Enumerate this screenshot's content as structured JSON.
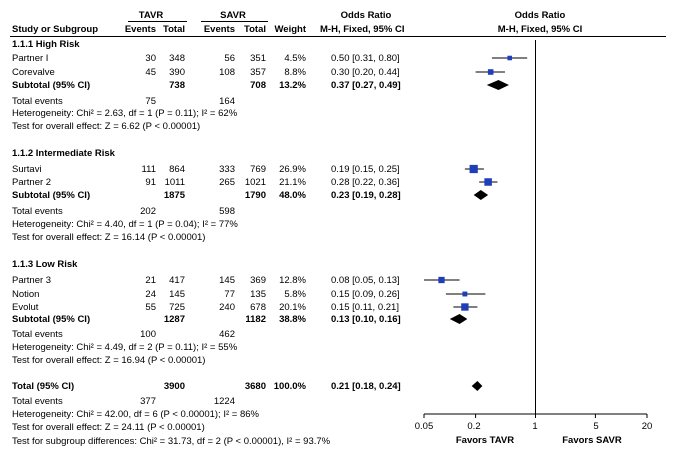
{
  "header": {
    "tavr": "TAVR",
    "savr": "SAVR",
    "or_col": "Odds Ratio",
    "or_col_right": "Odds Ratio",
    "study": "Study or Subgroup",
    "events1": "Events",
    "total1": "Total",
    "events2": "Events",
    "total2": "Total",
    "weight": "Weight",
    "method": "M-H, Fixed, 95% CI",
    "method_right": "M-H, Fixed, 95% CI"
  },
  "groups": [
    {
      "title": "1.1.1 High Risk",
      "studies": [
        {
          "name": "Partner I",
          "e1": "30",
          "n1": "348",
          "e2": "56",
          "n2": "351",
          "w": "4.5%",
          "ci": "0.50 [0.31, 0.80]"
        },
        {
          "name": "Corevalve",
          "e1": "45",
          "n1": "390",
          "e2": "108",
          "n2": "357",
          "w": "8.8%",
          "ci": "0.30 [0.20, 0.44]"
        }
      ],
      "subtotal": {
        "label": "Subtotal (95% CI)",
        "n1": "738",
        "n2": "708",
        "w": "13.2%",
        "ci": "0.37 [0.27, 0.49]"
      },
      "events": {
        "label": "Total events",
        "e1": "75",
        "e2": "164"
      },
      "het": "Heterogeneity: Chi² = 2.63, df = 1 (P = 0.11); I² = 62%",
      "test": "Test for overall effect: Z = 6.62 (P < 0.00001)"
    },
    {
      "title": "1.1.2 Intermediate Risk",
      "studies": [
        {
          "name": "Surtavi",
          "e1": "111",
          "n1": "864",
          "e2": "333",
          "n2": "769",
          "w": "26.9%",
          "ci": "0.19 [0.15, 0.25]"
        },
        {
          "name": "Partner 2",
          "e1": "91",
          "n1": "1011",
          "e2": "265",
          "n2": "1021",
          "w": "21.1%",
          "ci": "0.28 [0.22, 0.36]"
        }
      ],
      "subtotal": {
        "label": "Subtotal (95% CI)",
        "n1": "1875",
        "n2": "1790",
        "w": "48.0%",
        "ci": "0.23 [0.19, 0.28]"
      },
      "events": {
        "label": "Total events",
        "e1": "202",
        "e2": "598"
      },
      "het": "Heterogeneity: Chi² = 4.40, df = 1 (P = 0.04); I² = 77%",
      "test": "Test for overall effect: Z = 16.14 (P < 0.00001)"
    },
    {
      "title": "1.1.3 Low Risk",
      "studies": [
        {
          "name": "Partner 3",
          "e1": "21",
          "n1": "417",
          "e2": "145",
          "n2": "369",
          "w": "12.8%",
          "ci": "0.08 [0.05, 0.13]"
        },
        {
          "name": "Notion",
          "e1": "24",
          "n1": "145",
          "e2": "77",
          "n2": "135",
          "w": "5.8%",
          "ci": "0.15 [0.09, 0.26]"
        },
        {
          "name": "Evolut",
          "e1": "55",
          "n1": "725",
          "e2": "240",
          "n2": "678",
          "w": "20.1%",
          "ci": "0.15 [0.11, 0.21]"
        }
      ],
      "subtotal": {
        "label": "Subtotal (95% CI)",
        "n1": "1287",
        "n2": "1182",
        "w": "38.8%",
        "ci": "0.13 [0.10, 0.16]"
      },
      "events": {
        "label": "Total events",
        "e1": "100",
        "e2": "462"
      },
      "het": "Heterogeneity: Chi² = 4.49, df = 2 (P = 0.11); I² = 55%",
      "test": "Test for overall effect: Z = 16.94 (P < 0.00001)"
    }
  ],
  "total": {
    "label": "Total (95% CI)",
    "n1": "3900",
    "n2": "3680",
    "w": "100.0%",
    "ci": "0.21 [0.18, 0.24]",
    "events_label": "Total events",
    "e1": "377",
    "e2": "1224",
    "het": "Heterogeneity: Chi² = 42.00, df = 6 (P < 0.00001); I² = 86%",
    "test": "Test for overall effect: Z = 24.11 (P < 0.00001)",
    "subgroup": "Test for subgroup differences: Chi² = 31.73, df = 2 (P < 0.00001), I² = 93.7%"
  },
  "chart_data": {
    "type": "forest",
    "title": "Odds Ratio M-H, Fixed, 95% CI",
    "scale": "log",
    "xlim": [
      0.05,
      20
    ],
    "ticks": [
      0.05,
      0.2,
      1,
      5,
      20
    ],
    "tick_labels": [
      "0.05",
      "0.2",
      "1",
      "5",
      "20"
    ],
    "null_line": 1,
    "xlabel_left": "Favors TAVR",
    "xlabel_right": "Favors SAVR",
    "colors": {
      "square": "#1f3fb8",
      "line": "#000000",
      "diamond": "#000000"
    },
    "studies": [
      {
        "name": "Partner I",
        "or": 0.5,
        "lo": 0.31,
        "hi": 0.8,
        "weight": 4.5
      },
      {
        "name": "Corevalve",
        "or": 0.3,
        "lo": 0.2,
        "hi": 0.44,
        "weight": 8.8
      },
      {
        "name": "Surtavi",
        "or": 0.19,
        "lo": 0.15,
        "hi": 0.25,
        "weight": 26.9
      },
      {
        "name": "Partner 2",
        "or": 0.28,
        "lo": 0.22,
        "hi": 0.36,
        "weight": 21.1
      },
      {
        "name": "Partner 3",
        "or": 0.08,
        "lo": 0.05,
        "hi": 0.13,
        "weight": 12.8
      },
      {
        "name": "Notion",
        "or": 0.15,
        "lo": 0.09,
        "hi": 0.26,
        "weight": 5.8
      },
      {
        "name": "Evolut",
        "or": 0.15,
        "lo": 0.11,
        "hi": 0.21,
        "weight": 20.1
      }
    ],
    "summaries": [
      {
        "name": "Subtotal High Risk",
        "or": 0.37,
        "lo": 0.27,
        "hi": 0.49
      },
      {
        "name": "Subtotal Intermediate Risk",
        "or": 0.23,
        "lo": 0.19,
        "hi": 0.28
      },
      {
        "name": "Subtotal Low Risk",
        "or": 0.13,
        "lo": 0.1,
        "hi": 0.16
      },
      {
        "name": "Total",
        "or": 0.21,
        "lo": 0.18,
        "hi": 0.24
      }
    ]
  }
}
